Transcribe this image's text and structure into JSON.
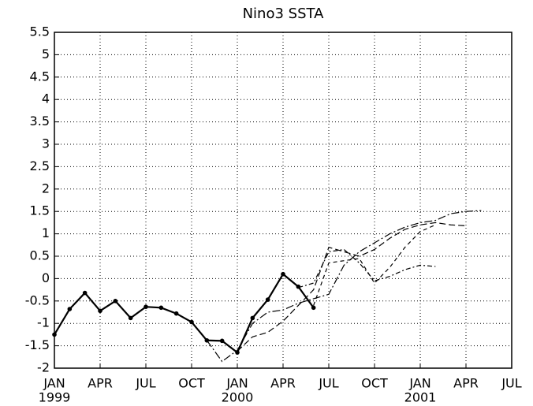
{
  "chart_data": {
    "type": "line",
    "title": "Nino3 SSTA",
    "xlim": [
      0,
      30
    ],
    "ylim": [
      -2,
      5.5
    ],
    "xticks": [
      {
        "value": 0,
        "label": "JAN"
      },
      {
        "value": 3,
        "label": "APR"
      },
      {
        "value": 6,
        "label": "JUL"
      },
      {
        "value": 9,
        "label": "OCT"
      },
      {
        "value": 12,
        "label": "JAN"
      },
      {
        "value": 15,
        "label": "APR"
      },
      {
        "value": 18,
        "label": "JUL"
      },
      {
        "value": 21,
        "label": "OCT"
      },
      {
        "value": 24,
        "label": "JAN"
      },
      {
        "value": 27,
        "label": "APR"
      },
      {
        "value": 30,
        "label": "JUL"
      }
    ],
    "xticks_year": [
      {
        "value": 0,
        "label": "1999"
      },
      {
        "value": 12,
        "label": "2000"
      },
      {
        "value": 24,
        "label": "2001"
      }
    ],
    "yticks": [
      -2,
      -1.5,
      -1,
      -0.5,
      0,
      0.5,
      1,
      1.5,
      2,
      2.5,
      3,
      3.5,
      4,
      4.5,
      5,
      5.5
    ],
    "grid": true,
    "series": [
      {
        "color": "#000",
        "dash": "solid",
        "markers": true,
        "width": 2.2,
        "x": [
          0,
          1,
          2,
          3,
          4,
          5,
          6,
          7,
          8,
          9,
          10,
          11,
          12,
          13,
          14,
          15,
          16,
          17
        ],
        "values": [
          -1.25,
          -0.68,
          -0.32,
          -0.72,
          -0.5,
          -0.88,
          -0.63,
          -0.65,
          -0.78,
          -0.97,
          -1.38,
          -1.39,
          -1.65,
          -0.88,
          -0.47,
          0.1,
          -0.18,
          -0.65
        ]
      },
      {
        "color": "#000",
        "dash": "8 4",
        "markers": false,
        "width": 1.2,
        "x": [
          12,
          13,
          14,
          15,
          16,
          17,
          18,
          19,
          20,
          21,
          22,
          23,
          24,
          25,
          26,
          27
        ],
        "values": [
          -1.62,
          -1.3,
          -1.2,
          -0.95,
          -0.6,
          -0.25,
          0.7,
          0.6,
          0.5,
          0.65,
          0.9,
          1.1,
          1.2,
          1.25,
          1.2,
          1.18
        ]
      },
      {
        "color": "#000",
        "dash": "10 3 2 3",
        "markers": false,
        "width": 1.2,
        "x": [
          10,
          11,
          12,
          13,
          14,
          15,
          16,
          17,
          18,
          19,
          20,
          21,
          22,
          23,
          24,
          25,
          26,
          27,
          28
        ],
        "values": [
          -1.38,
          -1.85,
          -1.6,
          -1.0,
          -0.75,
          -0.7,
          -0.55,
          -0.45,
          -0.35,
          0.3,
          0.6,
          0.8,
          1.0,
          1.15,
          1.25,
          1.3,
          1.45,
          1.5,
          1.52
        ]
      },
      {
        "color": "#000",
        "dash": "6 3 2 3",
        "markers": false,
        "width": 1.2,
        "x": [
          16,
          17,
          18,
          19,
          20,
          21,
          22,
          23,
          24,
          25
        ],
        "values": [
          -0.2,
          -0.1,
          0.6,
          0.65,
          0.35,
          -0.05,
          0.05,
          0.2,
          0.3,
          0.27
        ]
      },
      {
        "color": "#000",
        "dash": "5 4",
        "markers": false,
        "width": 1.2,
        "x": [
          17,
          18,
          19,
          20,
          21,
          22,
          23,
          24,
          25
        ],
        "values": [
          -0.6,
          0.35,
          0.4,
          0.45,
          -0.1,
          0.25,
          0.7,
          1.05,
          1.2
        ]
      }
    ]
  }
}
